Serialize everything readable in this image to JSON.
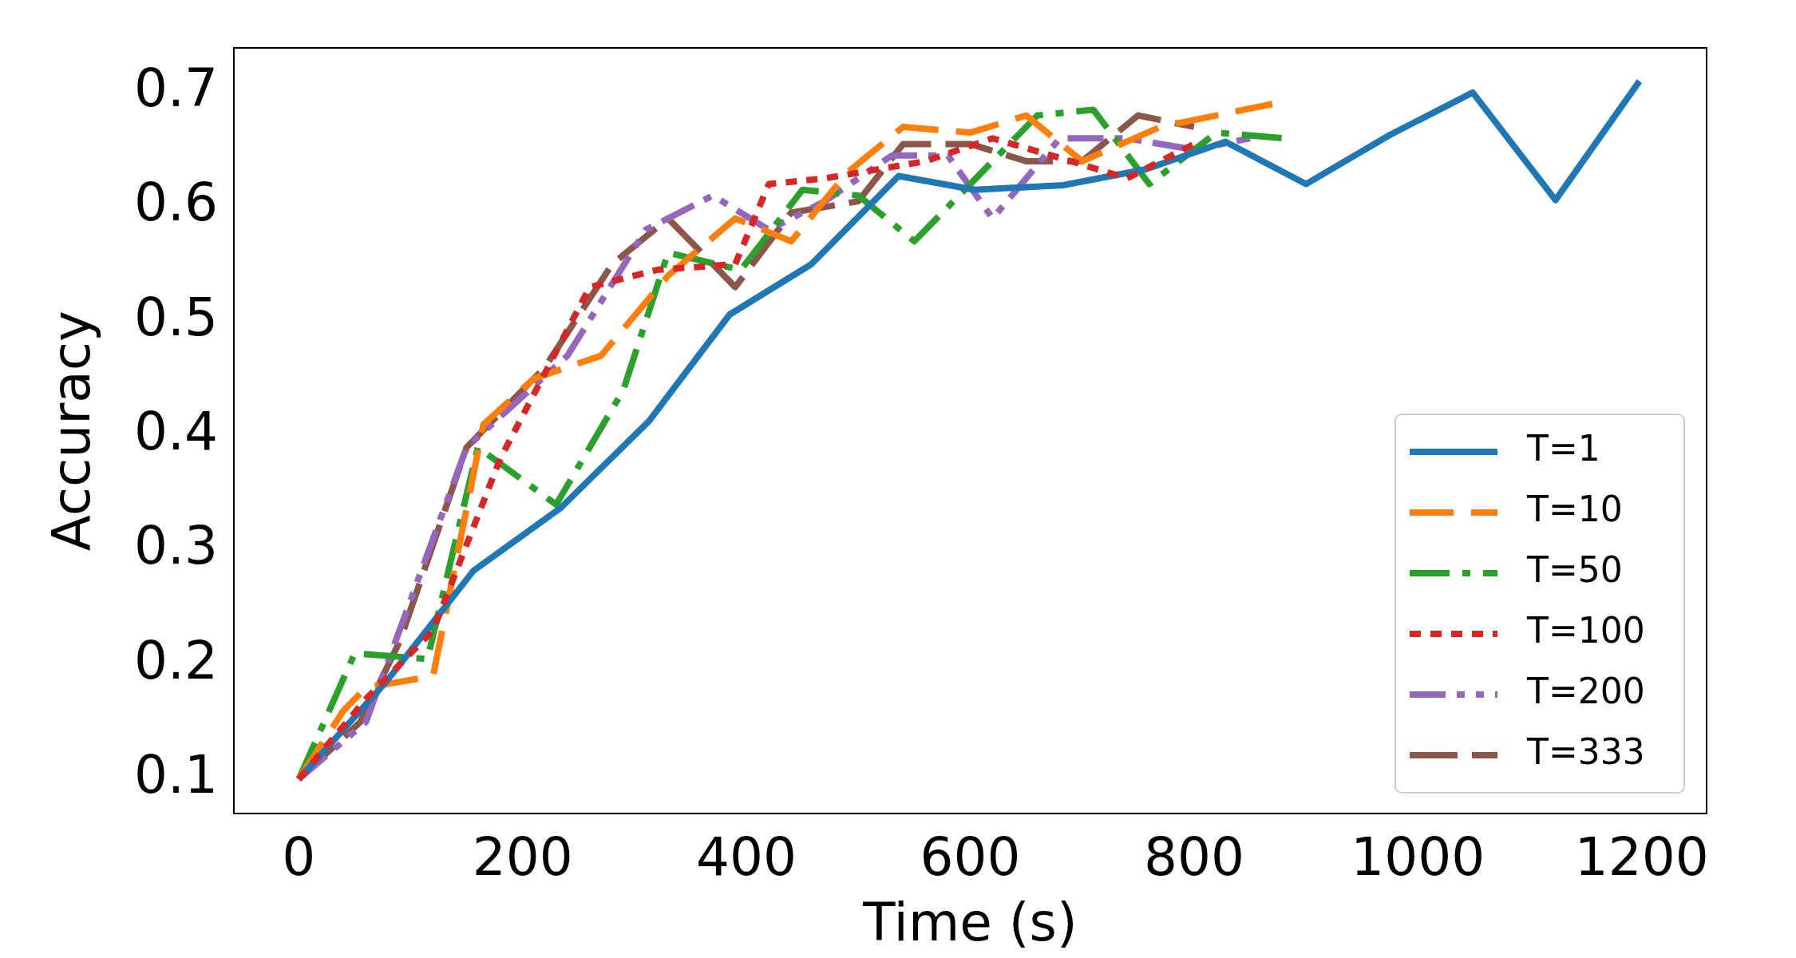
{
  "chart_data": {
    "type": "line",
    "xlabel": "Time (s)",
    "ylabel": "Accuracy",
    "xlim": [
      -58,
      1258
    ],
    "ylim": [
      0.07,
      0.739
    ],
    "xticks": [
      0,
      200,
      400,
      600,
      800,
      1000,
      1200
    ],
    "yticks": [
      0.1,
      0.2,
      0.3,
      0.4,
      0.5,
      0.6,
      0.7
    ],
    "grid": false,
    "legend": "bottom right",
    "series": [
      {
        "name": "T=1",
        "color": "#1f77b4",
        "line_style": "solid",
        "x": [
          0,
          78,
          156,
          234,
          313,
          385,
          458,
          536,
          604,
          683,
          757,
          828,
          900,
          975,
          1049,
          1123,
          1198
        ],
        "values": [
          0.1,
          0.185,
          0.282,
          0.337,
          0.413,
          0.506,
          0.55,
          0.627,
          0.615,
          0.619,
          0.633,
          0.657,
          0.62,
          0.663,
          0.7,
          0.606,
          0.71
        ]
      },
      {
        "name": "T=10",
        "color": "#ff7f0e",
        "line_style": "dashed",
        "x": [
          0,
          40,
          60,
          120,
          165,
          210,
          270,
          330,
          390,
          440,
          490,
          540,
          600,
          650,
          700,
          770,
          870
        ],
        "values": [
          0.1,
          0.16,
          0.18,
          0.19,
          0.41,
          0.45,
          0.47,
          0.54,
          0.59,
          0.57,
          0.63,
          0.67,
          0.665,
          0.68,
          0.64,
          0.67,
          0.69
        ]
      },
      {
        "name": "T=50",
        "color": "#2ca02c",
        "line_style": "dashdot",
        "x": [
          0,
          50,
          115,
          160,
          230,
          290,
          330,
          395,
          450,
          500,
          550,
          660,
          710,
          760,
          820,
          880
        ],
        "values": [
          0.1,
          0.21,
          0.205,
          0.39,
          0.34,
          0.44,
          0.56,
          0.545,
          0.615,
          0.61,
          0.57,
          0.68,
          0.685,
          0.62,
          0.665,
          0.66
        ]
      },
      {
        "name": "T=100",
        "color": "#d62728",
        "line_style": "dotted",
        "x": [
          0,
          60,
          120,
          180,
          260,
          320,
          390,
          420,
          470,
          560,
          620,
          690,
          740,
          800
        ],
        "values": [
          0.1,
          0.17,
          0.23,
          0.38,
          0.53,
          0.545,
          0.55,
          0.62,
          0.625,
          0.64,
          0.66,
          0.64,
          0.625,
          0.655
        ]
      },
      {
        "name": "T=200",
        "color": "#9467bd",
        "line_style": "dashdotdot",
        "x": [
          0,
          60,
          150,
          240,
          310,
          370,
          420,
          470,
          530,
          580,
          620,
          680,
          740,
          800,
          850
        ],
        "values": [
          0.1,
          0.15,
          0.39,
          0.47,
          0.58,
          0.61,
          0.58,
          0.605,
          0.645,
          0.645,
          0.59,
          0.66,
          0.66,
          0.65,
          0.66
        ]
      },
      {
        "name": "T=333",
        "color": "#8c564b",
        "line_style": "longdash",
        "x": [
          0,
          55,
          90,
          150,
          220,
          280,
          330,
          390,
          440,
          500,
          540,
          600,
          650,
          700,
          750,
          800
        ],
        "values": [
          0.1,
          0.15,
          0.22,
          0.39,
          0.46,
          0.55,
          0.59,
          0.53,
          0.595,
          0.605,
          0.655,
          0.655,
          0.64,
          0.64,
          0.68,
          0.67
        ]
      }
    ]
  }
}
